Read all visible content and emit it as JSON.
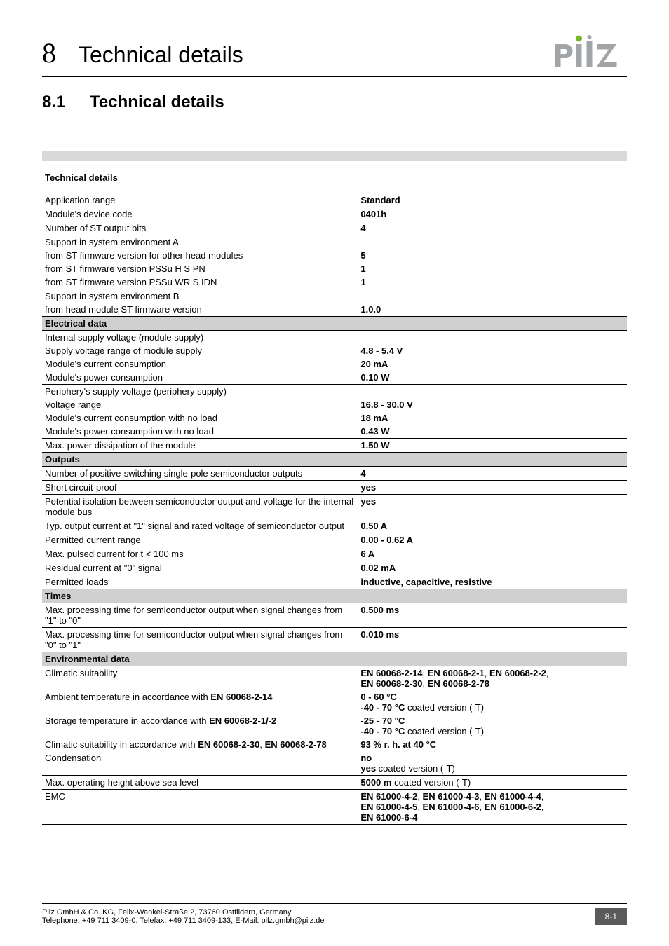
{
  "chapter": {
    "num": "8",
    "title": "Technical details"
  },
  "section": {
    "num": "8.1",
    "title": "Technical details"
  },
  "logo": {
    "fill": "#a2a5a7",
    "dot_fill": "#76b82a"
  },
  "table": {
    "header": "Technical details",
    "rows": [
      {
        "type": "data",
        "label": "Application range",
        "value": "Standard"
      },
      {
        "type": "data",
        "label": "Module's device code",
        "value": "0401h"
      },
      {
        "type": "data",
        "label": "Number of ST output bits",
        "value": "4"
      },
      {
        "type": "group_norule",
        "label": "Support in system environment A",
        "value": ""
      },
      {
        "type": "norule",
        "label": "from ST firmware version for other head modules",
        "value": "5"
      },
      {
        "type": "norule",
        "label": "from ST firmware version PSSu H S PN",
        "value": "1"
      },
      {
        "type": "data",
        "label": "from ST firmware version PSSu WR S IDN",
        "value": "1"
      },
      {
        "type": "group_norule",
        "label": "Support in system environment B",
        "value": ""
      },
      {
        "type": "data",
        "label": "from head module ST firmware version",
        "value": "1.0.0"
      },
      {
        "type": "sub",
        "label": "Electrical data"
      },
      {
        "type": "group_norule",
        "label": "Internal supply voltage (module supply)",
        "value": ""
      },
      {
        "type": "norule",
        "label": "Supply voltage range of module supply",
        "value": "4.8 - 5.4 V"
      },
      {
        "type": "norule",
        "label": "Module's current consumption",
        "value": "20 mA"
      },
      {
        "type": "data",
        "label": "Module's power consumption",
        "value": "0.10 W"
      },
      {
        "type": "group_norule",
        "label": "Periphery's supply voltage (periphery supply)",
        "value": ""
      },
      {
        "type": "norule",
        "label": "Voltage range",
        "value": "16.8 - 30.0 V"
      },
      {
        "type": "norule",
        "label": "Module's current consumption with no load",
        "value": "18 mA"
      },
      {
        "type": "data",
        "label": "Module's power consumption with no load",
        "value": "0.43 W"
      },
      {
        "type": "data",
        "label": "Max. power dissipation of the module",
        "value": "1.50 W"
      },
      {
        "type": "sub",
        "label": "Outputs"
      },
      {
        "type": "data",
        "label": "Number of positive-switching single-pole semiconductor outputs",
        "value": "4"
      },
      {
        "type": "data",
        "label": "Short circuit-proof",
        "value": "yes"
      },
      {
        "type": "data",
        "label": "Potential isolation between semiconductor output and voltage for the internal module bus",
        "value": "yes"
      },
      {
        "type": "data",
        "label": "Typ. output current at \"1\" signal and rated voltage of semiconductor output",
        "value": "0.50 A"
      },
      {
        "type": "data",
        "label": "Permitted current range",
        "value": "0.00 - 0.62 A"
      },
      {
        "type": "data",
        "label": "Max. pulsed current for t < 100 ms",
        "value": "6 A"
      },
      {
        "type": "data",
        "label": "Residual current at \"0\" signal",
        "value": "0.02 mA"
      },
      {
        "type": "data",
        "label": "Permitted loads",
        "value": "inductive, capacitive, resistive"
      },
      {
        "type": "sub",
        "label": "Times"
      },
      {
        "type": "data",
        "label": "Max. processing time for semiconductor output when signal changes from \"1\" to \"0\"",
        "value": "0.500 ms"
      },
      {
        "type": "data",
        "label": "Max. processing time for semiconductor output when signal changes from \"0\" to \"1\"",
        "value": "0.010 ms"
      },
      {
        "type": "sub",
        "label": "Environmental data"
      },
      {
        "type": "norule",
        "label": "Climatic suitability",
        "value_html": "<b>EN 60068-2-14</b>, <b>EN 60068-2-1</b>, <b>EN 60068-2-2</b>,<br><b>EN 60068-2-30</b>, <b>EN 60068-2-78</b>"
      },
      {
        "type": "norule",
        "label_html": "Ambient temperature in accordance with <b>EN 60068-2-14</b>",
        "value_html": "<b>0 - 60 °C</b><br><b>-40 - 70 °C</b> coated version (-T)"
      },
      {
        "type": "norule",
        "label_html": "Storage temperature in accordance with <b>EN 60068-2-1/-2</b>",
        "value_html": "<b>-25 - 70 °C</b><br><b>-40 - 70 °C</b> coated version (-T)"
      },
      {
        "type": "norule",
        "label_html": "Climatic suitability in accordance with <b>EN 60068-2-30</b>, <b>EN 60068-2-78</b>",
        "value": "93 % r. h. at 40 °C"
      },
      {
        "type": "data",
        "label": "Condensation",
        "value_html": "<b>no</b><br><b>yes</b> coated version (-T)"
      },
      {
        "type": "data",
        "label": "Max. operating height above sea level",
        "value_html": "<b>5000 m</b> coated version (-T)"
      },
      {
        "type": "data",
        "label": "EMC",
        "value_html": "<b>EN 61000-4-2</b>, <b>EN 61000-4-3</b>, <b>EN 61000-4-4</b>,<br><b>EN 61000-4-5</b>, <b>EN 61000-4-6</b>, <b>EN 61000-6-2</b>,<br><b>EN 61000-6-4</b>"
      }
    ]
  },
  "footer": {
    "line1": "Pilz GmbH & Co. KG, Felix-Wankel-Straße 2, 73760 Ostfildern, Germany",
    "line2": "Telephone: +49 711 3409-0, Telefax: +49 711 3409-133, E-Mail: pilz.gmbh@pilz.de",
    "page": "8-1"
  }
}
